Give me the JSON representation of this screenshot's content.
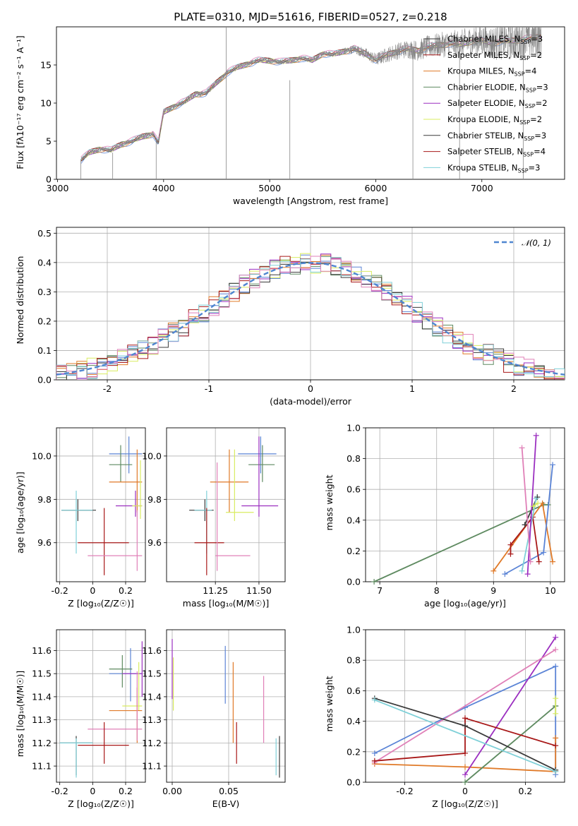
{
  "title": "PLATE=0310, MJD=51616, FIBERID=0527, z=0.218",
  "colors": {
    "blue": "#5b84d6",
    "orange": "#e07a28",
    "green": "#5e8a60",
    "purple": "#9b2fc0",
    "yellow": "#d9ec60",
    "dark": "#3a3a3a",
    "red": "#a81818",
    "cyan": "#7fd0d8",
    "pink": "#e080b8",
    "spectrum": "#888888",
    "grid": "#b0b0b0"
  },
  "chart_data": [
    {
      "id": "spectrum",
      "type": "line",
      "xlabel": "wavelength [Angstrom, rest frame]",
      "ylabel": "Flux [fλ10⁻¹⁷ erg cm⁻² s⁻¹ A⁻¹]",
      "xlim": [
        2990,
        7780
      ],
      "ylim": [
        0,
        20
      ],
      "xticks": [
        3000,
        4000,
        5000,
        6000,
        7000
      ],
      "yticks": [
        0,
        5,
        10,
        15
      ],
      "grid": false,
      "legend_position": "top-right",
      "legend": [
        "Chabrier MILES, N_SSP=3",
        "Salpeter MILES, N_SSP=2",
        "Kroupa MILES, N_SSP=4",
        "Chabrier ELODIE, N_SSP=3",
        "Salpeter ELODIE, N_SSP=2",
        "Kroupa ELODIE, N_SSP=2",
        "Chabrier STELIB, N_SSP=3",
        "Salpeter STELIB, N_SSP=4",
        "Kroupa STELIB, N_SSP=3"
      ],
      "data_x": [
        3220,
        3300,
        3400,
        3500,
        3600,
        3700,
        3800,
        3900,
        3950,
        4000,
        4100,
        4200,
        4300,
        4400,
        4500,
        4600,
        4700,
        4800,
        4900,
        5000,
        5100,
        5200,
        5300,
        5400,
        5500,
        5600,
        5700,
        5800,
        5900,
        6000,
        6100,
        6200,
        6300,
        6400,
        6500,
        6600,
        6700,
        6800,
        6900,
        7000,
        7100,
        7200,
        7300,
        7400,
        7560
      ],
      "data_y": [
        2.5,
        3.5,
        4.0,
        3.8,
        4.6,
        5.0,
        5.6,
        6.0,
        4.8,
        8.8,
        9.6,
        10.2,
        11.2,
        11.3,
        12.7,
        14.0,
        14.7,
        15.2,
        15.6,
        15.6,
        15.4,
        15.6,
        15.9,
        15.6,
        16.5,
        16.4,
        16.8,
        17.1,
        16.5,
        15.7,
        16.3,
        16.8,
        17.1,
        16.9,
        17.4,
        17.6,
        17.8,
        17.7,
        18.1,
        18.2,
        17.9,
        18.1,
        18.2,
        18.4,
        18.7
      ]
    },
    {
      "id": "residuals",
      "type": "line",
      "xlabel": "(data-model)/error",
      "ylabel": "Normed distribution",
      "xlim": [
        -2.5,
        2.5
      ],
      "ylim": [
        0,
        0.52
      ],
      "xticks": [
        -2,
        -1,
        0,
        1,
        2
      ],
      "yticks": [
        0.0,
        0.1,
        0.2,
        0.3,
        0.4,
        0.5
      ],
      "grid": true,
      "legend_position": "top-right",
      "legend": [
        "𝒩(0, 1)"
      ],
      "hist_bins": [
        -2.5,
        2.5,
        50
      ]
    },
    {
      "id": "age-vs-Z",
      "type": "scatter",
      "xlabel": "Z [log₁₀(Z/Z☉)]",
      "ylabel": "age  [log₁₀(age/yr)]",
      "xlim": [
        -0.22,
        0.32
      ],
      "ylim": [
        9.42,
        10.13
      ],
      "xticks": [
        -0.2,
        0.0,
        0.2
      ],
      "yticks": [
        9.6,
        9.8,
        10.0
      ],
      "grid": true,
      "points": [
        {
          "c": "blue",
          "x": 0.22,
          "y": 10.01,
          "xe": [
            0.1,
            0.3
          ],
          "ye": [
            9.92,
            10.09
          ]
        },
        {
          "c": "green",
          "x": 0.17,
          "y": 9.96,
          "xe": [
            0.1,
            0.24
          ],
          "ye": [
            9.88,
            10.05
          ]
        },
        {
          "c": "orange",
          "x": 0.27,
          "y": 9.88,
          "xe": [
            0.1,
            0.3
          ],
          "ye": [
            9.74,
            10.03
          ]
        },
        {
          "c": "purple",
          "x": 0.26,
          "y": 9.77,
          "xe": [
            0.14,
            0.3
          ],
          "ye": [
            9.72,
            9.84
          ]
        },
        {
          "c": "yellow",
          "x": 0.29,
          "y": 9.77,
          "xe": [
            0.24,
            0.3
          ],
          "ye": [
            9.71,
            9.98
          ]
        },
        {
          "c": "dark",
          "x": -0.09,
          "y": 9.75,
          "xe": [
            -0.19,
            0.02
          ],
          "ye": [
            9.7,
            9.8
          ]
        },
        {
          "c": "cyan",
          "x": -0.1,
          "y": 9.75,
          "xe": [
            -0.19,
            0.0
          ],
          "ye": [
            9.55,
            9.84
          ]
        },
        {
          "c": "red",
          "x": 0.07,
          "y": 9.6,
          "xe": [
            -0.09,
            0.22
          ],
          "ye": [
            9.45,
            9.76
          ]
        },
        {
          "c": "pink",
          "x": 0.27,
          "y": 9.54,
          "xe": [
            -0.03,
            0.3
          ],
          "ye": [
            9.47,
            9.75
          ]
        }
      ]
    },
    {
      "id": "age-vs-mass",
      "type": "scatter",
      "xlabel": "mass [log₁₀(M/M☉)]",
      "ylabel": "",
      "xlim": [
        10.97,
        11.65
      ],
      "ylim": [
        9.42,
        10.13
      ],
      "xticks": [
        11.25,
        11.5
      ],
      "xticklabels": [
        "11.25",
        "11.50"
      ],
      "yticks": [
        9.6,
        9.8,
        10.0
      ],
      "grid": true,
      "points": [
        {
          "c": "blue",
          "x": 11.51,
          "y": 10.01,
          "xe": [
            11.38,
            11.6
          ],
          "ye": [
            9.92,
            10.09
          ]
        },
        {
          "c": "green",
          "x": 11.52,
          "y": 9.96,
          "xe": [
            11.44,
            11.59
          ],
          "ye": [
            9.88,
            10.05
          ]
        },
        {
          "c": "orange",
          "x": 11.33,
          "y": 9.88,
          "xe": [
            11.22,
            11.44
          ],
          "ye": [
            9.74,
            10.03
          ]
        },
        {
          "c": "purple",
          "x": 11.5,
          "y": 9.77,
          "xe": [
            11.4,
            11.61
          ],
          "ye": [
            9.72,
            10.09
          ]
        },
        {
          "c": "yellow",
          "x": 11.36,
          "y": 9.74,
          "xe": [
            11.31,
            11.47
          ],
          "ye": [
            9.7,
            10.03
          ]
        },
        {
          "c": "dark",
          "x": 11.19,
          "y": 9.75,
          "xe": [
            11.1,
            11.24
          ],
          "ye": [
            9.7,
            9.8
          ]
        },
        {
          "c": "cyan",
          "x": 11.2,
          "y": 9.75,
          "xe": [
            11.13,
            11.23
          ],
          "ye": [
            9.55,
            9.84
          ]
        },
        {
          "c": "red",
          "x": 11.2,
          "y": 9.6,
          "xe": [
            11.13,
            11.3
          ],
          "ye": [
            9.45,
            9.76
          ]
        },
        {
          "c": "pink",
          "x": 11.26,
          "y": 9.54,
          "xe": [
            11.25,
            11.45
          ],
          "ye": [
            9.47,
            9.97
          ]
        }
      ]
    },
    {
      "id": "weight-vs-age",
      "type": "line",
      "xlabel": "age  [log₁₀(age/yr)]",
      "ylabel": "mass weight",
      "xlim": [
        6.75,
        10.25
      ],
      "ylim": [
        0,
        1
      ],
      "xticks": [
        7,
        8,
        9,
        10
      ],
      "yticks": [
        0.0,
        0.2,
        0.4,
        0.6,
        0.8,
        1.0
      ],
      "grid": true,
      "series": [
        {
          "c": "green",
          "x": [
            6.9,
            9.88,
            9.96
          ],
          "y": [
            0.0,
            0.5,
            0.5
          ]
        },
        {
          "c": "orange",
          "x": [
            9.0,
            9.86,
            10.04
          ],
          "y": [
            0.07,
            0.51,
            0.13
          ]
        },
        {
          "c": "blue",
          "x": [
            9.2,
            9.88,
            10.04
          ],
          "y": [
            0.05,
            0.19,
            0.76
          ]
        },
        {
          "c": "red",
          "x": [
            9.3,
            9.3,
            9.69,
            9.8
          ],
          "y": [
            0.18,
            0.24,
            0.42,
            0.13
          ]
        },
        {
          "c": "dark",
          "x": [
            9.55,
            9.77
          ],
          "y": [
            0.37,
            0.55
          ]
        },
        {
          "c": "cyan",
          "x": [
            9.5,
            9.75
          ],
          "y": [
            0.07,
            0.54
          ]
        },
        {
          "c": "purple",
          "x": [
            9.6,
            9.75
          ],
          "y": [
            0.05,
            0.95
          ]
        },
        {
          "c": "yellow",
          "x": [
            9.7,
            9.78
          ],
          "y": [
            0.49,
            0.51
          ]
        },
        {
          "c": "pink",
          "x": [
            9.5,
            9.65
          ],
          "y": [
            0.87,
            0.13
          ]
        }
      ]
    },
    {
      "id": "mass-vs-Z",
      "type": "scatter",
      "xlabel": "Z [log₁₀(Z/Z☉)]",
      "ylabel": "mass [log₁₀(M/M☉)]",
      "xlim": [
        -0.22,
        0.32
      ],
      "ylim": [
        11.03,
        11.69
      ],
      "xticks": [
        -0.2,
        0.0,
        0.2
      ],
      "yticks": [
        11.1,
        11.2,
        11.3,
        11.4,
        11.5,
        11.6
      ],
      "grid": true,
      "points": [
        {
          "c": "blue",
          "x": 0.23,
          "y": 11.5,
          "xe": [
            0.1,
            0.3
          ],
          "ye": [
            11.38,
            11.61
          ]
        },
        {
          "c": "green",
          "x": 0.18,
          "y": 11.52,
          "xe": [
            0.1,
            0.24
          ],
          "ye": [
            11.44,
            11.58
          ]
        },
        {
          "c": "purple",
          "x": 0.3,
          "y": 11.5,
          "xe": [
            0.18,
            0.3
          ],
          "ye": [
            11.4,
            11.64
          ]
        },
        {
          "c": "yellow",
          "x": 0.28,
          "y": 11.36,
          "xe": [
            0.18,
            0.3
          ],
          "ye": [
            11.34,
            11.55
          ]
        },
        {
          "c": "orange",
          "x": 0.27,
          "y": 11.34,
          "xe": [
            0.1,
            0.3
          ],
          "ye": [
            11.2,
            11.44
          ]
        },
        {
          "c": "pink",
          "x": 0.27,
          "y": 11.26,
          "xe": [
            -0.03,
            0.3
          ],
          "ye": [
            11.21,
            11.51
          ]
        },
        {
          "c": "red",
          "x": 0.07,
          "y": 11.19,
          "xe": [
            -0.09,
            0.22
          ],
          "ye": [
            11.11,
            11.29
          ]
        },
        {
          "c": "dark",
          "x": -0.1,
          "y": 11.2,
          "xe": [
            -0.2,
            0.0
          ],
          "ye": [
            11.06,
            11.23
          ]
        },
        {
          "c": "cyan",
          "x": -0.1,
          "y": 11.2,
          "xe": [
            -0.2,
            0.0
          ],
          "ye": [
            11.05,
            11.22
          ]
        }
      ]
    },
    {
      "id": "mass-vs-EBV",
      "type": "scatter",
      "xlabel": "E(B-V)",
      "ylabel": "",
      "xlim": [
        -0.005,
        0.1
      ],
      "ylim": [
        11.03,
        11.69
      ],
      "xticks": [
        0.0,
        0.05
      ],
      "xticklabels": [
        "0.00",
        "0.05"
      ],
      "yticks": [
        11.1,
        11.2,
        11.3,
        11.4,
        11.5,
        11.6
      ],
      "grid": true,
      "points": [
        {
          "c": "purple",
          "x": 0.0,
          "y": 11.5,
          "ye": [
            11.39,
            11.65
          ]
        },
        {
          "c": "yellow",
          "x": 0.001,
          "y": 11.45,
          "ye": [
            11.34,
            11.57
          ]
        },
        {
          "c": "blue",
          "x": 0.047,
          "y": 11.5,
          "ye": [
            11.37,
            11.62
          ]
        },
        {
          "c": "orange",
          "x": 0.054,
          "y": 11.4,
          "ye": [
            11.2,
            11.55
          ]
        },
        {
          "c": "red",
          "x": 0.057,
          "y": 11.2,
          "ye": [
            11.11,
            11.29
          ]
        },
        {
          "c": "pink",
          "x": 0.081,
          "y": 11.35,
          "ye": [
            11.2,
            11.49
          ]
        },
        {
          "c": "cyan",
          "x": 0.092,
          "y": 11.14,
          "ye": [
            11.06,
            11.22
          ]
        },
        {
          "c": "dark",
          "x": 0.095,
          "y": 11.14,
          "ye": [
            11.05,
            11.23
          ]
        }
      ]
    },
    {
      "id": "weight-vs-Z",
      "type": "line",
      "xlabel": "Z [log₁₀(Z/Z☉)]",
      "ylabel": "mass weight",
      "xlim": [
        -0.33,
        0.33
      ],
      "ylim": [
        0,
        1
      ],
      "xticks": [
        -0.2,
        0.0,
        0.2
      ],
      "yticks": [
        0.0,
        0.2,
        0.4,
        0.6,
        0.8,
        1.0
      ],
      "grid": true,
      "series": [
        {
          "c": "blue",
          "x": [
            -0.3,
            0.0,
            0.3,
            0.3
          ],
          "y": [
            0.19,
            0.49,
            0.76,
            0.05
          ]
        },
        {
          "c": "orange",
          "x": [
            -0.3,
            0.0,
            0.3,
            0.3
          ],
          "y": [
            0.12,
            0.1,
            0.07,
            0.29
          ]
        },
        {
          "c": "green",
          "x": [
            0.0,
            0.3,
            0.3
          ],
          "y": [
            0.0,
            0.5,
            0.5
          ]
        },
        {
          "c": "purple",
          "x": [
            0.0,
            0.3
          ],
          "y": [
            0.05,
            0.95
          ]
        },
        {
          "c": "pink",
          "x": [
            -0.3,
            0.3
          ],
          "y": [
            0.13,
            0.87
          ]
        },
        {
          "c": "red",
          "x": [
            -0.3,
            0.0,
            0.0,
            0.3
          ],
          "y": [
            0.14,
            0.19,
            0.42,
            0.24
          ]
        },
        {
          "c": "dark",
          "x": [
            -0.3,
            0.0,
            0.3
          ],
          "y": [
            0.55,
            0.37,
            0.08
          ]
        },
        {
          "c": "cyan",
          "x": [
            -0.3,
            0.3
          ],
          "y": [
            0.54,
            0.07
          ]
        },
        {
          "c": "yellow",
          "x": [
            0.3,
            0.3
          ],
          "y": [
            0.45,
            0.55
          ]
        }
      ]
    }
  ]
}
